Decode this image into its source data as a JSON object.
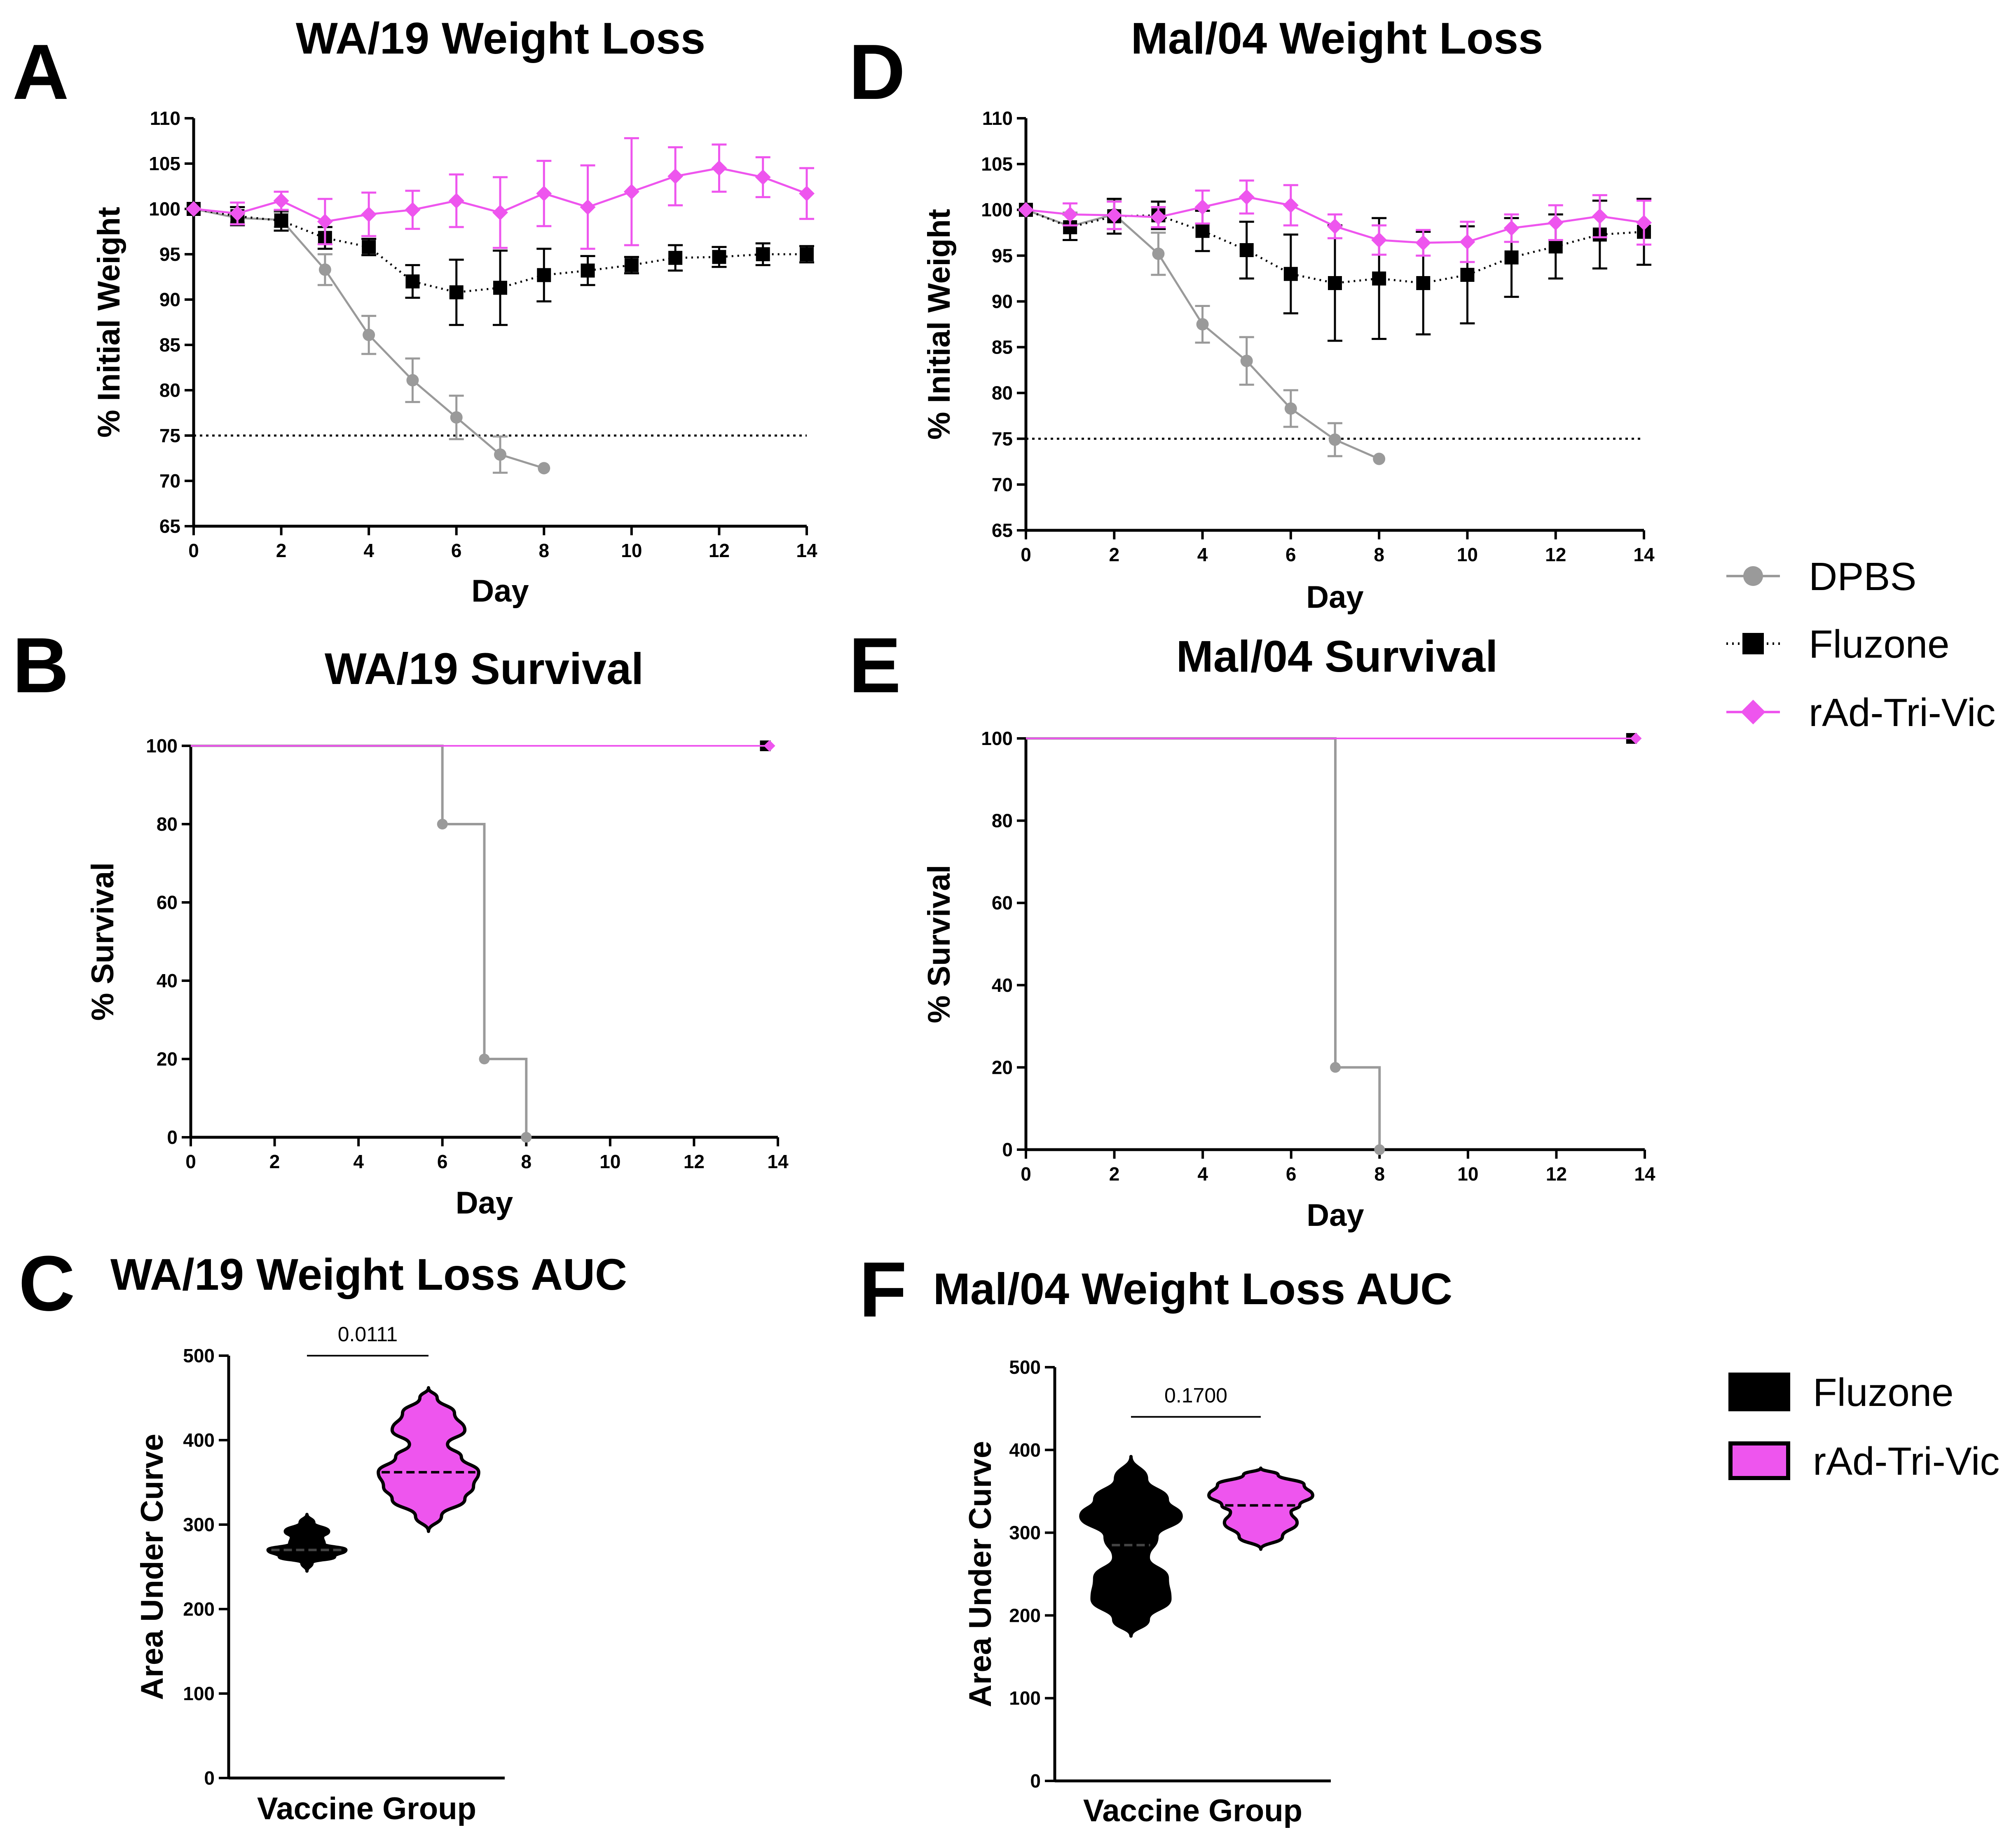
{
  "legend_lines": {
    "items": [
      {
        "name": "DPBS",
        "color": "#9a9a9a",
        "marker": "circle",
        "line": "solid"
      },
      {
        "name": "Fluzone",
        "color": "#000000",
        "marker": "square",
        "line": "dotted"
      },
      {
        "name": "rAd-Tri-Vic",
        "color": "#ee55ee",
        "marker": "diamond",
        "line": "solid"
      }
    ]
  },
  "legend_violins": {
    "items": [
      {
        "name": "Fluzone",
        "color": "#000000"
      },
      {
        "name": "rAd-Tri-Vic",
        "color": "#ee55ee"
      }
    ]
  },
  "chart_data": [
    {
      "panel": "A",
      "type": "line",
      "title": "WA/19 Weight Loss",
      "xlabel": "Day",
      "ylabel": "% Initial Weight",
      "xlim": [
        0,
        14
      ],
      "ylim": [
        65,
        110
      ],
      "xticks": [
        0,
        2,
        4,
        6,
        8,
        10,
        12,
        14
      ],
      "yticks": [
        65,
        70,
        75,
        80,
        85,
        90,
        95,
        100,
        105,
        110
      ],
      "threshold": 75,
      "series": [
        {
          "name": "DPBS",
          "x": [
            0,
            1,
            2,
            3,
            4,
            5,
            6,
            7,
            8
          ],
          "y": [
            100,
            99,
            98.8,
            93.3,
            86.1,
            81.1,
            77.0,
            72.9,
            71.4
          ],
          "err": [
            0,
            0.5,
            0.8,
            1.7,
            2.1,
            2.4,
            2.4,
            2.0,
            0
          ]
        },
        {
          "name": "Fluzone",
          "x": [
            0,
            1,
            2,
            3,
            4,
            5,
            6,
            7,
            8,
            9,
            10,
            11,
            12,
            13,
            14
          ],
          "y": [
            100,
            99.2,
            98.7,
            96.8,
            95.8,
            92.0,
            90.8,
            91.3,
            92.7,
            93.2,
            93.8,
            94.6,
            94.7,
            95.0,
            95.0
          ],
          "err": [
            0,
            1.0,
            1.1,
            1.2,
            0.9,
            1.8,
            3.6,
            4.1,
            2.9,
            1.6,
            0.9,
            1.4,
            1.1,
            1.2,
            0.9
          ]
        },
        {
          "name": "rAd-Tri-Vic",
          "x": [
            0,
            1,
            2,
            3,
            4,
            5,
            6,
            7,
            8,
            9,
            10,
            11,
            12,
            13,
            14
          ],
          "y": [
            100,
            99.5,
            100.9,
            98.6,
            99.4,
            99.9,
            100.9,
            99.6,
            101.7,
            100.2,
            101.9,
            103.6,
            104.5,
            103.5,
            101.7
          ],
          "err": [
            0,
            1.2,
            1.0,
            2.5,
            2.4,
            2.1,
            2.9,
            3.9,
            3.6,
            4.6,
            5.9,
            3.2,
            2.6,
            2.2,
            2.8
          ]
        }
      ]
    },
    {
      "panel": "D",
      "type": "line",
      "title": "Mal/04 Weight Loss",
      "xlabel": "Day",
      "ylabel": "% Initial Weight",
      "xlim": [
        0,
        14
      ],
      "ylim": [
        65,
        110
      ],
      "xticks": [
        0,
        2,
        4,
        6,
        8,
        10,
        12,
        14
      ],
      "yticks": [
        65,
        70,
        75,
        80,
        85,
        90,
        95,
        100,
        105,
        110
      ],
      "threshold": 75,
      "series": [
        {
          "name": "DPBS",
          "x": [
            0,
            1,
            2,
            3,
            4,
            5,
            6,
            7,
            8
          ],
          "y": [
            100,
            98.2,
            99.5,
            95.2,
            87.5,
            83.5,
            78.3,
            74.9,
            72.8
          ],
          "err": [
            0,
            1.5,
            1.6,
            2.3,
            2.0,
            2.6,
            2.0,
            1.8,
            0
          ]
        },
        {
          "name": "Fluzone",
          "x": [
            0,
            1,
            2,
            3,
            4,
            5,
            6,
            7,
            8,
            9,
            10,
            11,
            12,
            13,
            14
          ],
          "y": [
            100,
            98.1,
            99.3,
            99.4,
            97.7,
            95.6,
            93.0,
            92.0,
            92.5,
            92.0,
            92.9,
            94.8,
            96.0,
            97.3,
            97.6
          ],
          "err": [
            0,
            1.4,
            1.9,
            1.5,
            2.2,
            3.1,
            4.3,
            6.3,
            6.6,
            5.6,
            5.3,
            4.3,
            3.5,
            3.7,
            3.6
          ]
        },
        {
          "name": "rAd-Tri-Vic",
          "x": [
            0,
            1,
            2,
            3,
            4,
            5,
            6,
            7,
            8,
            9,
            10,
            11,
            12,
            13,
            14
          ],
          "y": [
            100,
            99.5,
            99.4,
            99.2,
            100.3,
            101.4,
            100.5,
            98.2,
            96.7,
            96.4,
            96.5,
            98.0,
            98.6,
            99.3,
            98.6
          ],
          "err": [
            0,
            1.2,
            1.5,
            1.1,
            1.8,
            1.8,
            2.2,
            1.3,
            1.6,
            1.4,
            2.2,
            1.5,
            1.9,
            2.3,
            2.4
          ]
        }
      ]
    },
    {
      "panel": "B",
      "type": "line",
      "subtype": "survival-step",
      "title": "WA/19 Survival",
      "xlabel": "Day",
      "ylabel": "% Survival",
      "xlim": [
        0,
        14
      ],
      "ylim": [
        0,
        100
      ],
      "xticks": [
        0,
        2,
        4,
        6,
        8,
        10,
        12,
        14
      ],
      "yticks": [
        0,
        20,
        40,
        60,
        80,
        100
      ],
      "series": [
        {
          "name": "DPBS",
          "x": [
            0,
            6,
            7,
            8
          ],
          "y": [
            100,
            80,
            20,
            0
          ]
        },
        {
          "name": "Fluzone",
          "x": [
            0,
            13.7
          ],
          "y": [
            100,
            100
          ]
        },
        {
          "name": "rAd-Tri-Vic",
          "x": [
            0,
            13.8
          ],
          "y": [
            100,
            100
          ]
        }
      ]
    },
    {
      "panel": "E",
      "type": "line",
      "subtype": "survival-step",
      "title": "Mal/04 Survival",
      "xlabel": "Day",
      "ylabel": "% Survival",
      "xlim": [
        0,
        14
      ],
      "ylim": [
        0,
        100
      ],
      "xticks": [
        0,
        2,
        4,
        6,
        8,
        10,
        12,
        14
      ],
      "yticks": [
        0,
        20,
        40,
        60,
        80,
        100
      ],
      "series": [
        {
          "name": "DPBS",
          "x": [
            0,
            7,
            8
          ],
          "y": [
            100,
            20,
            0
          ]
        },
        {
          "name": "Fluzone",
          "x": [
            0,
            13.7
          ],
          "y": [
            100,
            100
          ]
        },
        {
          "name": "rAd-Tri-Vic",
          "x": [
            0,
            13.8
          ],
          "y": [
            100,
            100
          ]
        }
      ]
    },
    {
      "panel": "C",
      "type": "violin",
      "title": "WA/19 Weight Loss AUC",
      "xlabel": "Vaccine Group",
      "ylabel": "Area Under Curve",
      "ylim": [
        0,
        500
      ],
      "yticks": [
        0,
        100,
        200,
        300,
        400,
        500
      ],
      "p_value": "0.0111",
      "groups": [
        {
          "name": "Fluzone",
          "median": 270,
          "min": 245,
          "max": 312,
          "profile": [
            [
              245,
              0
            ],
            [
              255,
              0.06
            ],
            [
              262,
              0.32
            ],
            [
              270,
              0.45
            ],
            [
              277,
              0.2
            ],
            [
              285,
              0.18
            ],
            [
              292,
              0.25
            ],
            [
              302,
              0.08
            ],
            [
              312,
              0
            ]
          ]
        },
        {
          "name": "rAd-Tri-Vic",
          "median": 362,
          "min": 292,
          "max": 462,
          "profile": [
            [
              292,
              0
            ],
            [
              310,
              0.15
            ],
            [
              330,
              0.42
            ],
            [
              345,
              0.52
            ],
            [
              362,
              0.58
            ],
            [
              380,
              0.38
            ],
            [
              395,
              0.22
            ],
            [
              412,
              0.42
            ],
            [
              432,
              0.3
            ],
            [
              450,
              0.1
            ],
            [
              462,
              0
            ]
          ]
        }
      ]
    },
    {
      "panel": "F",
      "type": "violin",
      "title": "Mal/04 Weight Loss AUC",
      "xlabel": "Vaccine Group",
      "ylabel": "Area Under Curve",
      "ylim": [
        0,
        500
      ],
      "yticks": [
        0,
        100,
        200,
        300,
        400,
        500
      ],
      "p_value": "0.1700",
      "groups": [
        {
          "name": "Fluzone",
          "median": 285,
          "min": 175,
          "max": 392,
          "profile": [
            [
              175,
              0
            ],
            [
              195,
              0.2
            ],
            [
              220,
              0.45
            ],
            [
              245,
              0.42
            ],
            [
              270,
              0.2
            ],
            [
              295,
              0.3
            ],
            [
              320,
              0.58
            ],
            [
              340,
              0.42
            ],
            [
              365,
              0.18
            ],
            [
              392,
              0
            ]
          ]
        },
        {
          "name": "rAd-Tri-Vic",
          "median": 333,
          "min": 280,
          "max": 378,
          "profile": [
            [
              280,
              0
            ],
            [
              295,
              0.25
            ],
            [
              312,
              0.42
            ],
            [
              325,
              0.35
            ],
            [
              333,
              0.45
            ],
            [
              345,
              0.6
            ],
            [
              358,
              0.5
            ],
            [
              370,
              0.2
            ],
            [
              378,
              0
            ]
          ]
        }
      ]
    }
  ]
}
